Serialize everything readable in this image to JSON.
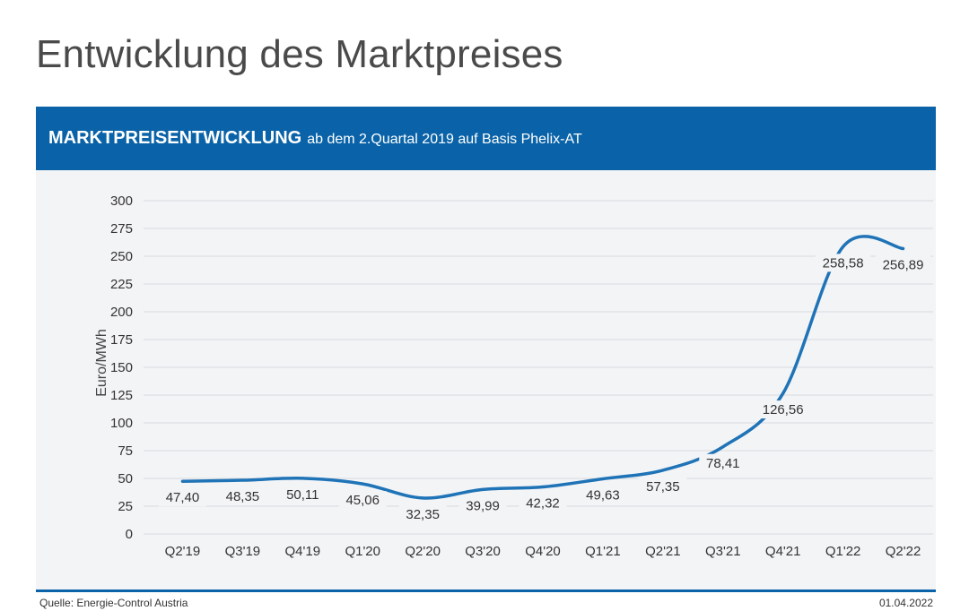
{
  "page": {
    "title": "Entwicklung des Marktpreises"
  },
  "header": {
    "bold": "MARKTPREISENTWICKLUNG",
    "rest": "ab dem 2.Quartal 2019 auf Basis Phelix-AT"
  },
  "footer": {
    "source": "Quelle: Energie-Control Austria",
    "date": "01.04.2022"
  },
  "colors": {
    "accent": "#0a63a8",
    "line": "#1f73b7",
    "grid": "#d9dadd"
  },
  "chart_data": {
    "type": "line",
    "title": "",
    "xlabel": "",
    "ylabel": "Euro/MWh",
    "ylim": [
      0,
      300
    ],
    "yticks": [
      0,
      25,
      50,
      75,
      100,
      125,
      150,
      175,
      200,
      225,
      250,
      275,
      300
    ],
    "grid": true,
    "categories": [
      "Q2'19",
      "Q3'19",
      "Q4'19",
      "Q1'20",
      "Q2'20",
      "Q3'20",
      "Q4'20",
      "Q1'21",
      "Q2'21",
      "Q3'21",
      "Q4'21",
      "Q1'22",
      "Q2'22"
    ],
    "values": [
      47.4,
      48.35,
      50.11,
      45.06,
      32.35,
      39.99,
      42.32,
      49.63,
      57.35,
      78.41,
      126.56,
      258.58,
      256.89
    ],
    "value_labels": [
      "47,40",
      "48,35",
      "50,11",
      "45,06",
      "32,35",
      "39,99",
      "42,32",
      "49,63",
      "57,35",
      "78,41",
      "126,56",
      "258,58",
      "256,89"
    ]
  }
}
